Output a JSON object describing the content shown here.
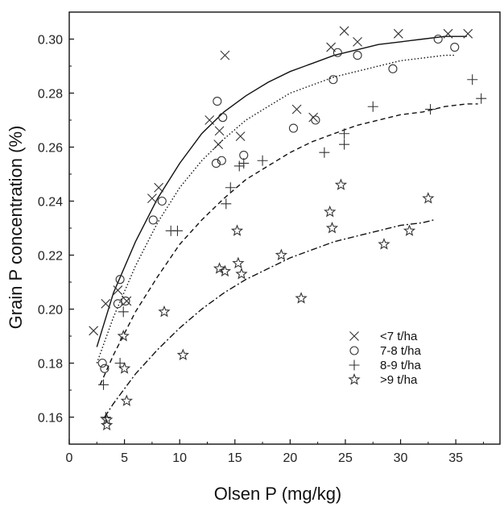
{
  "chart_data": {
    "type": "scatter",
    "xlabel": "Olsen P (mg/kg)",
    "ylabel": "Grain P concentration (%)",
    "xlim": [
      0,
      39
    ],
    "ylim": [
      0.15,
      0.31
    ],
    "x_ticks": [
      0,
      5,
      10,
      15,
      20,
      25,
      30,
      35
    ],
    "y_ticks": [
      0.16,
      0.18,
      0.2,
      0.22,
      0.24,
      0.26,
      0.28,
      0.3
    ],
    "x_tick_labels": [
      "0",
      "5",
      "10",
      "15",
      "20",
      "25",
      "30",
      "35"
    ],
    "y_tick_labels": [
      "0.16",
      "0.18",
      "0.20",
      "0.22",
      "0.24",
      "0.26",
      "0.28",
      "0.30"
    ],
    "grid": false,
    "legend_position": "lower-right",
    "series": [
      {
        "name": "<7 t/ha",
        "marker": "x",
        "line_style": "solid",
        "curve": [
          [
            2.5,
            0.186
          ],
          [
            4,
            0.206
          ],
          [
            6,
            0.225
          ],
          [
            8,
            0.241
          ],
          [
            10,
            0.254
          ],
          [
            12,
            0.265
          ],
          [
            14,
            0.273
          ],
          [
            16,
            0.279
          ],
          [
            18,
            0.284
          ],
          [
            20,
            0.288
          ],
          [
            22,
            0.291
          ],
          [
            24,
            0.294
          ],
          [
            26,
            0.296
          ],
          [
            28,
            0.298
          ],
          [
            30,
            0.299
          ],
          [
            32,
            0.3
          ],
          [
            34,
            0.301
          ],
          [
            36,
            0.301
          ]
        ],
        "points": [
          [
            2.2,
            0.192
          ],
          [
            3.3,
            0.202
          ],
          [
            4.4,
            0.207
          ],
          [
            5.2,
            0.203
          ],
          [
            7.5,
            0.241
          ],
          [
            8.1,
            0.245
          ],
          [
            12.7,
            0.27
          ],
          [
            13.5,
            0.261
          ],
          [
            13.6,
            0.266
          ],
          [
            14.1,
            0.294
          ],
          [
            15.5,
            0.264
          ],
          [
            20.6,
            0.274
          ],
          [
            22.1,
            0.271
          ],
          [
            23.7,
            0.297
          ],
          [
            24.9,
            0.303
          ],
          [
            26.1,
            0.299
          ],
          [
            29.8,
            0.302
          ],
          [
            34.3,
            0.302
          ],
          [
            36.1,
            0.302
          ]
        ]
      },
      {
        "name": "7-8 t/ha",
        "marker": "circle",
        "line_style": "dotted",
        "curve": [
          [
            2.5,
            0.18
          ],
          [
            4,
            0.197
          ],
          [
            6,
            0.216
          ],
          [
            8,
            0.232
          ],
          [
            10,
            0.245
          ],
          [
            12,
            0.255
          ],
          [
            14,
            0.263
          ],
          [
            16,
            0.27
          ],
          [
            18,
            0.275
          ],
          [
            20,
            0.28
          ],
          [
            22,
            0.283
          ],
          [
            24,
            0.286
          ],
          [
            26,
            0.288
          ],
          [
            28,
            0.29
          ],
          [
            30,
            0.292
          ],
          [
            32,
            0.293
          ],
          [
            34,
            0.294
          ],
          [
            35,
            0.294
          ]
        ],
        "points": [
          [
            3.0,
            0.18
          ],
          [
            3.2,
            0.178
          ],
          [
            4.4,
            0.202
          ],
          [
            4.6,
            0.211
          ],
          [
            5.1,
            0.203
          ],
          [
            7.6,
            0.233
          ],
          [
            8.4,
            0.24
          ],
          [
            13.3,
            0.254
          ],
          [
            13.4,
            0.277
          ],
          [
            13.8,
            0.255
          ],
          [
            13.9,
            0.271
          ],
          [
            15.8,
            0.257
          ],
          [
            20.3,
            0.267
          ],
          [
            22.3,
            0.27
          ],
          [
            23.9,
            0.285
          ],
          [
            24.3,
            0.295
          ],
          [
            26.1,
            0.294
          ],
          [
            29.3,
            0.289
          ],
          [
            33.4,
            0.3
          ],
          [
            34.9,
            0.297
          ]
        ]
      },
      {
        "name": "8-9 t/ha",
        "marker": "plus",
        "line_style": "dashed",
        "curve": [
          [
            2.8,
            0.172
          ],
          [
            4,
            0.183
          ],
          [
            6,
            0.199
          ],
          [
            8,
            0.212
          ],
          [
            10,
            0.224
          ],
          [
            12,
            0.233
          ],
          [
            14,
            0.241
          ],
          [
            16,
            0.248
          ],
          [
            18,
            0.253
          ],
          [
            20,
            0.258
          ],
          [
            22,
            0.262
          ],
          [
            24,
            0.265
          ],
          [
            26,
            0.268
          ],
          [
            28,
            0.27
          ],
          [
            30,
            0.272
          ],
          [
            32,
            0.273
          ],
          [
            34,
            0.275
          ],
          [
            36,
            0.276
          ],
          [
            37,
            0.276
          ]
        ],
        "points": [
          [
            3.1,
            0.172
          ],
          [
            3.3,
            0.16
          ],
          [
            4.6,
            0.18
          ],
          [
            4.9,
            0.199
          ],
          [
            9.2,
            0.229
          ],
          [
            9.8,
            0.229
          ],
          [
            14.2,
            0.239
          ],
          [
            14.6,
            0.245
          ],
          [
            15.4,
            0.253
          ],
          [
            15.8,
            0.254
          ],
          [
            17.5,
            0.255
          ],
          [
            23.1,
            0.258
          ],
          [
            24.9,
            0.265
          ],
          [
            24.9,
            0.261
          ],
          [
            27.5,
            0.275
          ],
          [
            32.7,
            0.274
          ],
          [
            36.5,
            0.285
          ],
          [
            37.3,
            0.278
          ]
        ]
      },
      {
        "name": ">9 t/ha",
        "marker": "star",
        "line_style": "dashdot",
        "curve": [
          [
            3.2,
            0.16
          ],
          [
            4,
            0.165
          ],
          [
            6,
            0.176
          ],
          [
            8,
            0.185
          ],
          [
            10,
            0.193
          ],
          [
            12,
            0.2
          ],
          [
            14,
            0.206
          ],
          [
            16,
            0.211
          ],
          [
            18,
            0.215
          ],
          [
            20,
            0.219
          ],
          [
            22,
            0.222
          ],
          [
            24,
            0.225
          ],
          [
            26,
            0.227
          ],
          [
            28,
            0.229
          ],
          [
            30,
            0.231
          ],
          [
            32,
            0.232
          ],
          [
            33,
            0.233
          ]
        ],
        "points": [
          [
            3.4,
            0.159
          ],
          [
            3.4,
            0.157
          ],
          [
            4.9,
            0.19
          ],
          [
            5.0,
            0.178
          ],
          [
            5.2,
            0.166
          ],
          [
            8.6,
            0.199
          ],
          [
            10.3,
            0.183
          ],
          [
            13.6,
            0.215
          ],
          [
            14.1,
            0.214
          ],
          [
            15.2,
            0.229
          ],
          [
            15.3,
            0.217
          ],
          [
            15.6,
            0.213
          ],
          [
            19.2,
            0.22
          ],
          [
            21.0,
            0.204
          ],
          [
            23.6,
            0.236
          ],
          [
            23.8,
            0.23
          ],
          [
            24.6,
            0.246
          ],
          [
            28.5,
            0.224
          ],
          [
            30.8,
            0.229
          ],
          [
            32.5,
            0.241
          ]
        ]
      }
    ]
  }
}
